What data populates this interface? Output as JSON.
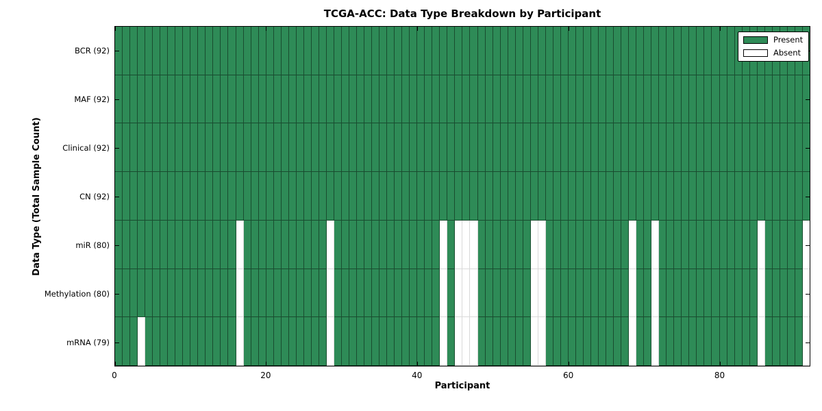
{
  "title": "TCGA-ACC: Data Type Breakdown by Participant",
  "x_axis": {
    "label": "Participant",
    "tick_values": [
      0,
      20,
      40,
      60,
      80
    ]
  },
  "y_axis": {
    "label": "Data Type (Total Sample Count)"
  },
  "legend": {
    "present": "Present",
    "absent": "Absent"
  },
  "colors": {
    "present": "#2e8b57",
    "absent": "#ffffff"
  },
  "chart_data": {
    "type": "heatmap",
    "title": "TCGA-ACC: Data Type Breakdown by Participant",
    "xlabel": "Participant",
    "ylabel": "Data Type (Total Sample Count)",
    "participants_total": 92,
    "x_range": [
      0,
      92
    ],
    "x_ticks": [
      0,
      20,
      40,
      60,
      80
    ],
    "legend_position": "upper right",
    "legend_entries": [
      "Present",
      "Absent"
    ],
    "rows": [
      {
        "name": "BCR",
        "total": 92,
        "display": "BCR (92)",
        "absent": []
      },
      {
        "name": "MAF",
        "total": 92,
        "display": "MAF (92)",
        "absent": []
      },
      {
        "name": "Clinical",
        "total": 92,
        "display": "Clinical (92)",
        "absent": []
      },
      {
        "name": "CN",
        "total": 92,
        "display": "CN (92)",
        "absent": []
      },
      {
        "name": "miR",
        "total": 80,
        "display": "miR (80)",
        "absent": [
          16,
          28,
          43,
          45,
          46,
          47,
          55,
          56,
          68,
          71,
          85,
          91
        ]
      },
      {
        "name": "Methylation",
        "total": 80,
        "display": "Methylation (80)",
        "absent": [
          16,
          28,
          43,
          45,
          46,
          47,
          55,
          56,
          68,
          71,
          85,
          91
        ]
      },
      {
        "name": "mRNA",
        "total": 79,
        "display": "mRNA (79)",
        "absent": [
          3,
          16,
          28,
          43,
          45,
          46,
          47,
          55,
          56,
          68,
          71,
          85,
          91
        ]
      }
    ]
  }
}
